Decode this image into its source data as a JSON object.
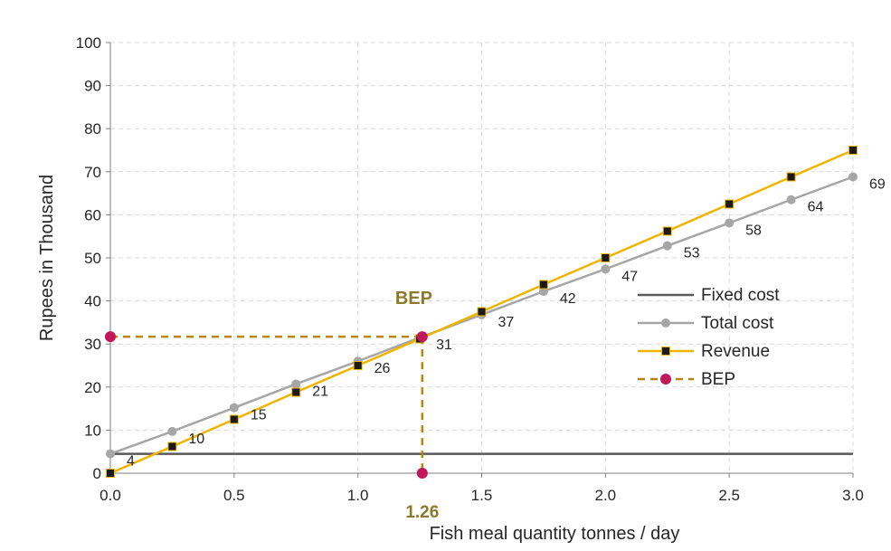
{
  "chart_data": {
    "type": "line",
    "xlabel": "Fish meal quantity tonnes  / day",
    "ylabel": "Rupees in Thousand",
    "xlim": [
      0,
      3
    ],
    "ylim": [
      0,
      100
    ],
    "x_ticks": [
      "0.0",
      "0.5",
      "1.0",
      "1.5",
      "2.0",
      "2.5",
      "3.0"
    ],
    "y_ticks": [
      "0",
      "10",
      "20",
      "30",
      "40",
      "50",
      "60",
      "70",
      "80",
      "90",
      "100"
    ],
    "grid": true,
    "legend_position": "right-middle",
    "series": [
      {
        "name": "Fixed cost",
        "color": "#595959",
        "marker": "none",
        "x": [
          0,
          3
        ],
        "y": [
          4.5,
          4.5
        ]
      },
      {
        "name": "Total cost",
        "color": "#a6a6a6",
        "marker": "circle",
        "x": [
          0,
          0.25,
          0.5,
          0.75,
          1.0,
          1.25,
          1.5,
          1.75,
          2.0,
          2.25,
          2.5,
          2.75,
          3.0
        ],
        "y": [
          4.5,
          9.7,
          15.2,
          20.7,
          26.0,
          31.5,
          36.8,
          42.2,
          47.4,
          52.8,
          58.1,
          63.5,
          68.8
        ],
        "labels": [
          "4",
          "10",
          "15",
          "21",
          "26",
          "31",
          "37",
          "42",
          "47",
          "53",
          "58",
          "64",
          "69"
        ]
      },
      {
        "name": "Revenue",
        "color": "#f0b400",
        "marker": "square",
        "x": [
          0,
          0.25,
          0.5,
          0.75,
          1.0,
          1.25,
          1.5,
          1.75,
          2.0,
          2.25,
          2.5,
          2.75,
          3.0
        ],
        "y": [
          0,
          6.2,
          12.5,
          18.8,
          25.0,
          31.2,
          37.5,
          43.8,
          50.0,
          56.2,
          62.5,
          68.8,
          75.0
        ]
      },
      {
        "name": "BEP",
        "color": "#b8860b",
        "marker_color": "#c2185b",
        "marker": "circle",
        "dashed": true,
        "bep_x": 1.26,
        "bep_y": 31.7
      }
    ],
    "annotations": {
      "bep_label": "BEP",
      "bep_x_label": "1.26"
    }
  }
}
